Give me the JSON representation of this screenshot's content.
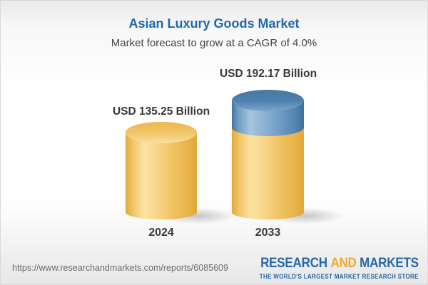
{
  "header": {
    "title": "Asian Luxury Goods Market",
    "subtitle": "Market forecast to grow at a CAGR of 4.0%"
  },
  "chart_data": {
    "type": "bar",
    "variant": "3d-cylinder",
    "title": "Asian Luxury Goods Market",
    "subtitle": "Market forecast to grow at a CAGR of 4.0%",
    "categories": [
      "2024",
      "2033"
    ],
    "values": [
      135.25,
      192.17
    ],
    "value_labels": [
      "USD 135.25 Billion",
      "USD 192.17 Billion"
    ],
    "unit": "USD Billion",
    "cagr_percent": 4.0,
    "legend": "none",
    "grid": false,
    "axes": "none",
    "series_colors": {
      "base": "#f2c569",
      "growth_segment": "#5e8ebc"
    },
    "notes": "2033 cylinder shows the base value in gold with the forecast growth portion as a blue segment on top"
  },
  "footer": {
    "url": "https://www.researchandmarkets.com/reports/6085609",
    "logo": {
      "word1": "RESEARCH",
      "word2": "AND",
      "word3": "MARKETS",
      "tagline": "THE WORLD'S LARGEST MARKET RESEARCH STORE"
    }
  },
  "colors": {
    "title_blue": "#2068ac",
    "label_dark": "#383838",
    "url_gray": "#6b6b6b",
    "logo_blue": "#2769a9",
    "logo_orange": "#f2a92e",
    "cylinder_gold": "#f2c569",
    "cylinder_blue": "#5e8ebc"
  }
}
